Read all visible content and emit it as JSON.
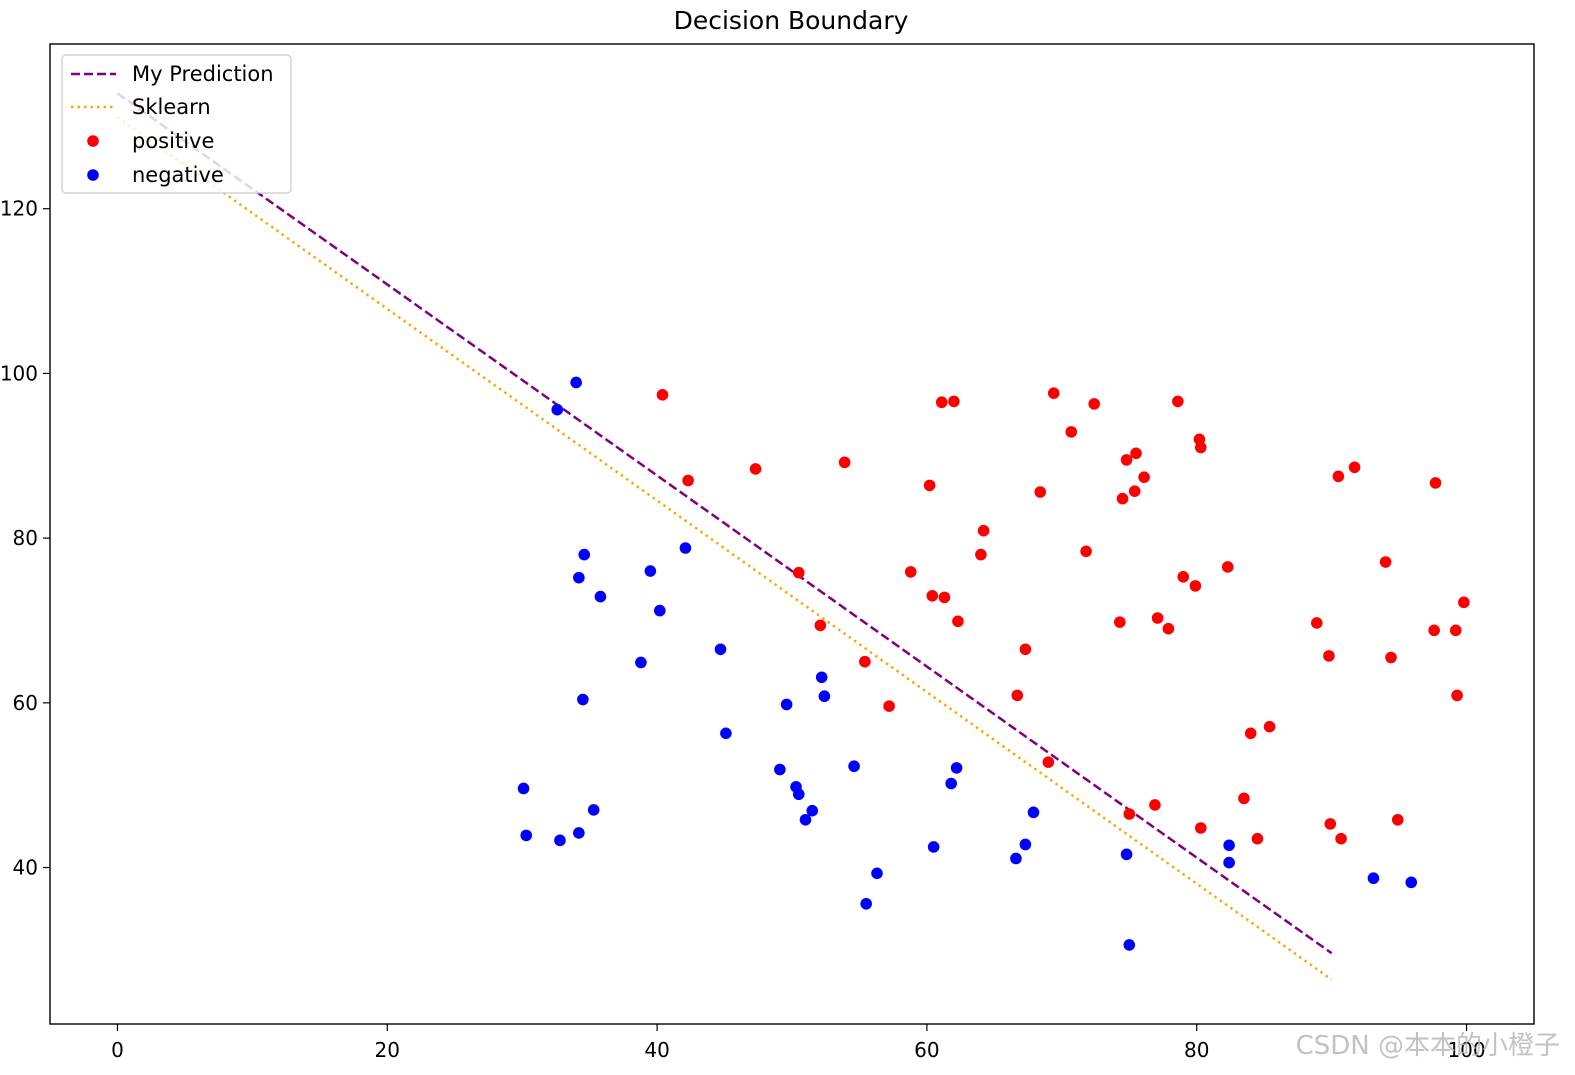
{
  "chart_data": {
    "type": "scatter",
    "title": "Decision Boundary",
    "xlabel": "",
    "ylabel": "",
    "xlim": [
      -5,
      105
    ],
    "ylim": [
      21,
      140
    ],
    "xticks": [
      0,
      20,
      40,
      60,
      80,
      100
    ],
    "yticks": [
      40,
      60,
      80,
      100,
      120
    ],
    "grid": false,
    "legend_position": "top-left",
    "series": [
      {
        "name": "My Prediction",
        "kind": "line",
        "style": "dashed",
        "color": "#800080",
        "x": [
          0,
          90
        ],
        "y": [
          134.0,
          29.6
        ]
      },
      {
        "name": "Sklearn",
        "kind": "line",
        "style": "dotted",
        "color": "#ffa500",
        "x": [
          0,
          90
        ],
        "y": [
          131.1,
          26.4
        ]
      },
      {
        "name": "positive",
        "kind": "scatter",
        "color": "#ff0000",
        "points": [
          [
            40.4,
            97.4
          ],
          [
            42.3,
            87.0
          ],
          [
            47.3,
            88.4
          ],
          [
            50.5,
            75.8
          ],
          [
            52.1,
            69.4
          ],
          [
            53.9,
            89.2
          ],
          [
            55.4,
            65.0
          ],
          [
            57.2,
            59.6
          ],
          [
            58.8,
            75.9
          ],
          [
            60.2,
            86.4
          ],
          [
            60.4,
            73.0
          ],
          [
            61.1,
            96.5
          ],
          [
            61.3,
            72.8
          ],
          [
            62.0,
            96.6
          ],
          [
            62.3,
            69.9
          ],
          [
            64.0,
            78.0
          ],
          [
            64.2,
            80.9
          ],
          [
            66.7,
            60.9
          ],
          [
            67.3,
            66.5
          ],
          [
            68.4,
            85.6
          ],
          [
            69.0,
            52.8
          ],
          [
            69.4,
            97.6
          ],
          [
            70.7,
            92.9
          ],
          [
            71.8,
            78.4
          ],
          [
            72.4,
            96.3
          ],
          [
            74.3,
            69.8
          ],
          [
            74.5,
            84.8
          ],
          [
            74.8,
            89.5
          ],
          [
            75.0,
            46.5
          ],
          [
            75.4,
            85.7
          ],
          [
            75.5,
            90.3
          ],
          [
            76.1,
            87.4
          ],
          [
            76.9,
            47.6
          ],
          [
            77.1,
            70.3
          ],
          [
            77.9,
            69.0
          ],
          [
            78.6,
            96.6
          ],
          [
            79.0,
            75.3
          ],
          [
            79.9,
            74.2
          ],
          [
            80.2,
            92.0
          ],
          [
            80.3,
            91.0
          ],
          [
            80.3,
            44.8
          ],
          [
            82.3,
            76.5
          ],
          [
            83.5,
            48.4
          ],
          [
            84.0,
            56.3
          ],
          [
            84.5,
            43.5
          ],
          [
            85.4,
            57.1
          ],
          [
            88.9,
            69.7
          ],
          [
            89.8,
            65.7
          ],
          [
            89.9,
            45.3
          ],
          [
            90.5,
            87.5
          ],
          [
            90.7,
            43.5
          ],
          [
            91.7,
            88.6
          ],
          [
            94.0,
            77.1
          ],
          [
            94.4,
            65.5
          ],
          [
            94.9,
            45.8
          ],
          [
            97.6,
            68.8
          ],
          [
            97.7,
            86.7
          ],
          [
            99.2,
            68.8
          ],
          [
            99.3,
            60.9
          ],
          [
            99.8,
            72.2
          ]
        ]
      },
      {
        "name": "negative",
        "kind": "scatter",
        "color": "#0000ff",
        "points": [
          [
            30.1,
            49.6
          ],
          [
            30.3,
            43.9
          ],
          [
            32.6,
            95.6
          ],
          [
            32.8,
            43.3
          ],
          [
            34.0,
            98.9
          ],
          [
            34.2,
            75.2
          ],
          [
            34.2,
            44.2
          ],
          [
            34.5,
            60.4
          ],
          [
            34.6,
            78.0
          ],
          [
            35.3,
            47.0
          ],
          [
            35.8,
            72.9
          ],
          [
            38.8,
            64.9
          ],
          [
            39.5,
            76.0
          ],
          [
            40.2,
            71.2
          ],
          [
            42.1,
            78.8
          ],
          [
            44.7,
            66.5
          ],
          [
            45.1,
            56.3
          ],
          [
            49.1,
            51.9
          ],
          [
            49.6,
            59.8
          ],
          [
            50.3,
            49.8
          ],
          [
            50.5,
            48.9
          ],
          [
            51.0,
            45.8
          ],
          [
            51.5,
            46.9
          ],
          [
            52.2,
            63.1
          ],
          [
            52.4,
            60.8
          ],
          [
            54.6,
            52.3
          ],
          [
            55.5,
            35.6
          ],
          [
            56.3,
            39.3
          ],
          [
            60.5,
            42.5
          ],
          [
            61.8,
            50.2
          ],
          [
            62.2,
            52.1
          ],
          [
            66.6,
            41.1
          ],
          [
            67.3,
            42.8
          ],
          [
            67.9,
            46.7
          ],
          [
            74.8,
            41.6
          ],
          [
            75.0,
            30.6
          ],
          [
            82.4,
            42.7
          ],
          [
            82.4,
            40.6
          ],
          [
            93.1,
            38.7
          ],
          [
            95.9,
            38.2
          ]
        ]
      }
    ]
  },
  "watermark": "CSDN @本本的小橙子"
}
